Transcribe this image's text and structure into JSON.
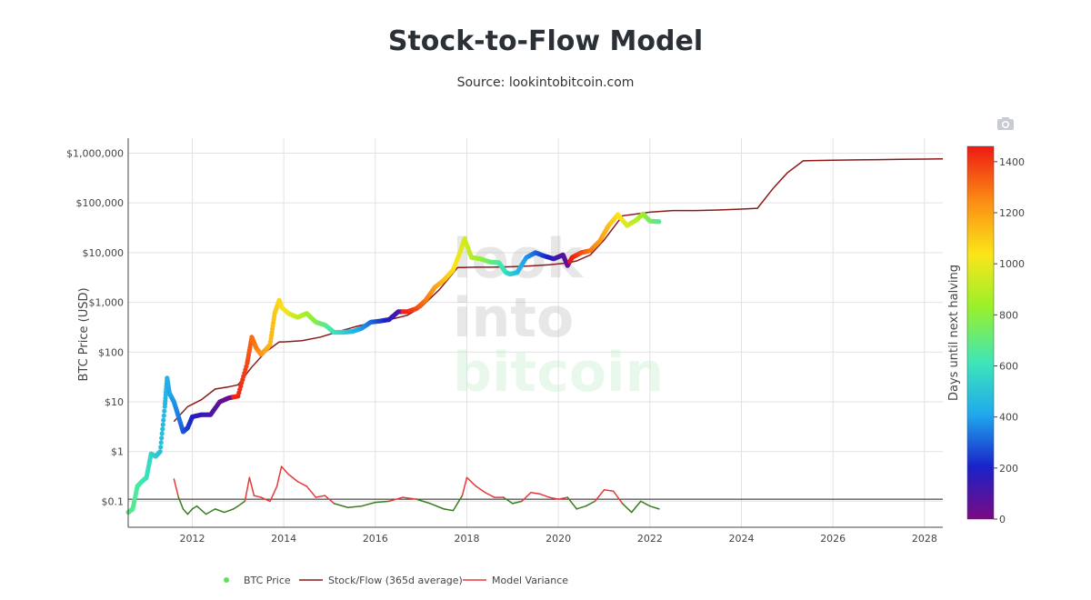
{
  "title": "Stock-to-Flow Model",
  "subtitle": "Source: lookintobitcoin.com",
  "toolbar": {
    "camera_icon": "camera-icon"
  },
  "watermark": {
    "line1": "look",
    "line2": "into",
    "line3": "bitcoin"
  },
  "legend": {
    "btc_price": "BTC Price",
    "stock_flow": "Stock/Flow (365d average)",
    "variance": "Model Variance"
  },
  "colorbar": {
    "title": "Days until next halving",
    "ticks": [
      "0",
      "200",
      "400",
      "600",
      "800",
      "1000",
      "1200",
      "1400"
    ],
    "range": [
      0,
      1460
    ]
  },
  "chart_data": {
    "type": "scatter",
    "title": "Stock-to-Flow Model",
    "ylabel": "BTC Price (USD)",
    "xlabel": "",
    "y_scale": "log",
    "x_range": [
      2010.6,
      2028.4
    ],
    "y_range": [
      0.03,
      2000000
    ],
    "x_ticks": [
      "2012",
      "2014",
      "2016",
      "2018",
      "2020",
      "2022",
      "2024",
      "2026",
      "2028"
    ],
    "y_ticks": [
      "$0.1",
      "$1",
      "$10",
      "$100",
      "$1,000",
      "$10,000",
      "$100,000",
      "$1,000,000"
    ],
    "grid": true,
    "legend_position": "bottom",
    "colors": {
      "stock_flow": "#8b1a1a",
      "variance_high": "#e8383a",
      "variance_low": "#3a7d1f",
      "reference_line": "#222222",
      "colorscale": [
        "#7a0a82",
        "#1a22c8",
        "#1fa8ee",
        "#3ee6b8",
        "#9af02a",
        "#fbe51a",
        "#fb8f14",
        "#ee1a14"
      ]
    },
    "series": [
      {
        "name": "BTC Price",
        "x": [
          2010.6,
          2010.7,
          2010.8,
          2010.9,
          2011.0,
          2011.1,
          2011.2,
          2011.3,
          2011.4,
          2011.45,
          2011.5,
          2011.6,
          2011.7,
          2011.8,
          2011.9,
          2012.0,
          2012.2,
          2012.4,
          2012.6,
          2012.8,
          2013.0,
          2013.2,
          2013.3,
          2013.4,
          2013.5,
          2013.6,
          2013.7,
          2013.8,
          2013.9,
          2013.95,
          2014.1,
          2014.3,
          2014.5,
          2014.7,
          2014.9,
          2015.1,
          2015.3,
          2015.5,
          2015.7,
          2015.9,
          2016.1,
          2016.3,
          2016.5,
          2016.7,
          2016.9,
          2017.1,
          2017.3,
          2017.5,
          2017.7,
          2017.85,
          2017.95,
          2018.1,
          2018.3,
          2018.5,
          2018.7,
          2018.85,
          2018.95,
          2019.1,
          2019.3,
          2019.5,
          2019.7,
          2019.9,
          2020.1,
          2020.2,
          2020.3,
          2020.5,
          2020.7,
          2020.9,
          2021.1,
          2021.3,
          2021.5,
          2021.7,
          2021.85,
          2022.0,
          2022.2
        ],
        "values": [
          0.06,
          0.07,
          0.2,
          0.25,
          0.3,
          0.9,
          0.8,
          1.0,
          8,
          30,
          15,
          10,
          5,
          2.5,
          3,
          5,
          5.5,
          5.5,
          10,
          12,
          13,
          60,
          200,
          120,
          90,
          110,
          140,
          600,
          1100,
          800,
          600,
          500,
          600,
          400,
          350,
          250,
          250,
          260,
          300,
          400,
          420,
          450,
          650,
          650,
          750,
          1100,
          2000,
          2800,
          4500,
          10000,
          19000,
          8000,
          7500,
          6500,
          6300,
          4000,
          3700,
          4000,
          8000,
          10000,
          8500,
          7500,
          9000,
          5500,
          8000,
          10000,
          11000,
          17000,
          35000,
          58000,
          35000,
          45000,
          60000,
          43000,
          42000
        ],
        "days_until_halving": [
          700,
          680,
          660,
          640,
          610,
          570,
          540,
          500,
          470,
          450,
          420,
          390,
          350,
          300,
          250,
          210,
          150,
          120,
          60,
          30,
          1440,
          1380,
          1320,
          1280,
          1240,
          1200,
          1160,
          1120,
          1080,
          1060,
          1000,
          920,
          860,
          780,
          700,
          620,
          560,
          480,
          400,
          330,
          260,
          180,
          100,
          1440,
          1380,
          1300,
          1220,
          1140,
          1060,
          1000,
          960,
          900,
          820,
          740,
          660,
          600,
          560,
          480,
          400,
          320,
          240,
          160,
          90,
          50,
          1460,
          1380,
          1300,
          1220,
          1140,
          1060,
          980,
          900,
          840,
          760,
          680
        ]
      },
      {
        "name": "Stock/Flow (365d average)",
        "x": [
          2011.6,
          2011.9,
          2012.2,
          2012.5,
          2012.8,
          2013.0,
          2013.3,
          2013.6,
          2013.9,
          2014.0,
          2014.4,
          2014.8,
          2015.2,
          2015.6,
          2016.0,
          2016.4,
          2016.7,
          2017.0,
          2017.4,
          2017.8,
          2018.2,
          2018.6,
          2019.0,
          2019.4,
          2019.8,
          2020.2,
          2020.4,
          2020.7,
          2021.0,
          2021.4,
          2022.0,
          2022.5,
          2023.0,
          2023.5,
          2024.0,
          2024.35,
          2024.7,
          2025.0,
          2025.35,
          2026.0,
          2026.5,
          2027.0,
          2027.5,
          2028.0,
          2028.4
        ],
        "values": [
          4,
          8,
          11,
          18,
          20,
          22,
          50,
          100,
          160,
          160,
          170,
          200,
          260,
          330,
          400,
          470,
          550,
          800,
          1800,
          5000,
          5100,
          5100,
          5200,
          5400,
          5700,
          6200,
          6800,
          9000,
          18000,
          55000,
          65000,
          70000,
          70000,
          72000,
          75000,
          78000,
          200000,
          400000,
          700000,
          720000,
          730000,
          740000,
          750000,
          760000,
          770000
        ]
      },
      {
        "name": "Model Variance",
        "x": [
          2011.6,
          2011.7,
          2011.8,
          2011.9,
          2012.0,
          2012.1,
          2012.3,
          2012.5,
          2012.7,
          2012.9,
          2013.0,
          2013.15,
          2013.25,
          2013.35,
          2013.5,
          2013.7,
          2013.85,
          2013.95,
          2014.1,
          2014.3,
          2014.5,
          2014.7,
          2014.9,
          2015.1,
          2015.4,
          2015.7,
          2016.0,
          2016.3,
          2016.6,
          2016.9,
          2017.2,
          2017.5,
          2017.7,
          2017.9,
          2018.0,
          2018.2,
          2018.4,
          2018.6,
          2018.8,
          2019.0,
          2019.2,
          2019.4,
          2019.6,
          2019.8,
          2020.0,
          2020.2,
          2020.4,
          2020.6,
          2020.8,
          2021.0,
          2021.2,
          2021.4,
          2021.6,
          2021.8,
          2022.0,
          2022.2
        ],
        "values": [
          0.28,
          0.12,
          0.07,
          0.055,
          0.07,
          0.08,
          0.055,
          0.07,
          0.06,
          0.07,
          0.08,
          0.1,
          0.3,
          0.13,
          0.12,
          0.1,
          0.2,
          0.5,
          0.35,
          0.25,
          0.2,
          0.12,
          0.13,
          0.09,
          0.075,
          0.08,
          0.095,
          0.1,
          0.12,
          0.11,
          0.09,
          0.07,
          0.065,
          0.13,
          0.3,
          0.2,
          0.15,
          0.12,
          0.12,
          0.09,
          0.1,
          0.15,
          0.14,
          0.12,
          0.11,
          0.12,
          0.07,
          0.08,
          0.1,
          0.17,
          0.16,
          0.09,
          0.06,
          0.1,
          0.08,
          0.07
        ]
      }
    ],
    "reference_line": 0.11
  }
}
